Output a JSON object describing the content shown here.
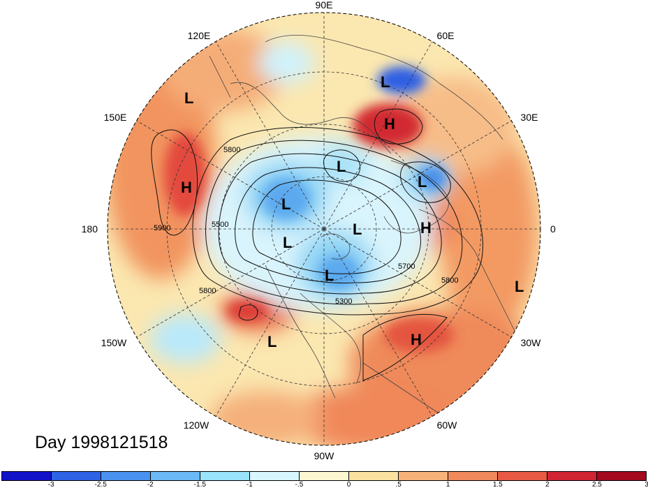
{
  "title": "Day 1998121518",
  "map": {
    "projection": "north-polar-stereographic",
    "longitude_labels": [
      {
        "text": "90E",
        "lon": 90
      },
      {
        "text": "60E",
        "lon": 60
      },
      {
        "text": "30E",
        "lon": 30
      },
      {
        "text": "0",
        "lon": 0
      },
      {
        "text": "30W",
        "lon": -30
      },
      {
        "text": "60W",
        "lon": -60
      },
      {
        "text": "90W",
        "lon": -90
      },
      {
        "text": "120W",
        "lon": -120
      },
      {
        "text": "150W",
        "lon": -150
      },
      {
        "text": "180",
        "lon": 180
      },
      {
        "text": "150E",
        "lon": 150
      },
      {
        "text": "120E",
        "lon": 120
      }
    ],
    "pressure_centers": [
      {
        "text": "L",
        "region": "north-africa"
      },
      {
        "text": "H",
        "region": "east-europe"
      },
      {
        "text": "L",
        "region": "mediterranean"
      },
      {
        "text": "H",
        "region": "iberia"
      },
      {
        "text": "L",
        "region": "siberia"
      },
      {
        "text": "L",
        "region": "arctic-asia"
      },
      {
        "text": "L",
        "region": "arctic-pole"
      },
      {
        "text": "L",
        "region": "beaufort"
      },
      {
        "text": "L",
        "region": "hudson-bay"
      },
      {
        "text": "H",
        "region": "north-atlantic"
      },
      {
        "text": "L",
        "region": "east-atlantic"
      },
      {
        "text": "L",
        "region": "east-pacific"
      },
      {
        "text": "L",
        "region": "west-pacific"
      },
      {
        "text": "H",
        "region": "central-pacific"
      }
    ],
    "contour_labels": [
      "5900",
      "5800",
      "5500",
      "5800",
      "5300",
      "5700",
      "5800"
    ]
  },
  "colorbar": {
    "colors": [
      "#1212c9",
      "#2e63e6",
      "#4a92f0",
      "#6bb9f7",
      "#99e3fb",
      "#d7f6fd",
      "#fdf7d2",
      "#fbe2a0",
      "#f7b27a",
      "#f08a5d",
      "#e85a44",
      "#cf2533",
      "#a30a1e"
    ],
    "ticks": [
      "-3",
      "-2.5",
      "-2",
      "-1.5",
      "-1",
      "-.5",
      "0",
      ".5",
      "1",
      "1.5",
      "2",
      "2.5",
      "3"
    ]
  }
}
